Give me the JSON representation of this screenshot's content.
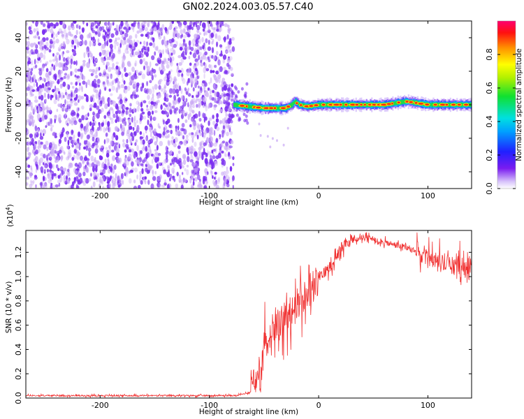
{
  "title": "GN02.2024.003.05.57.C40",
  "colors": {
    "spectrum_dots": "#7b2ff0",
    "spectrum_faint": "#c9a8f5",
    "snr_line": "#f03030",
    "axis": "#000000"
  },
  "chart_data": [
    {
      "type": "heatmap",
      "name": "spectrogram",
      "xlabel": "Height of straight line (km)",
      "ylabel": "Frequency (Hz)",
      "xlim": [
        -268,
        140
      ],
      "ylim": [
        -50,
        50
      ],
      "x_ticks": [
        "-200",
        "-100",
        "0",
        "100"
      ],
      "y_ticks": [
        "-40",
        "-20",
        "0",
        "20",
        "40"
      ],
      "noise_region_x": [
        -268,
        -78
      ],
      "signal_region_x": [
        -78,
        140
      ],
      "signal_center_freq_hz": [
        [
          -78,
          0
        ],
        [
          -65,
          -1
        ],
        [
          -50,
          -2
        ],
        [
          -40,
          -2
        ],
        [
          -30,
          -2
        ],
        [
          -25,
          0
        ],
        [
          -22,
          2
        ],
        [
          -18,
          0
        ],
        [
          -10,
          -1
        ],
        [
          0,
          0
        ],
        [
          20,
          0
        ],
        [
          40,
          0
        ],
        [
          60,
          0
        ],
        [
          70,
          1
        ],
        [
          80,
          2
        ],
        [
          90,
          1
        ],
        [
          100,
          0
        ],
        [
          120,
          0
        ],
        [
          140,
          0
        ]
      ],
      "colorbar": {
        "label": "Normalized spectral amplitude",
        "ticks": [
          "0.0",
          "0.2",
          "0.4",
          "0.6",
          "0.8"
        ],
        "range": [
          0,
          1
        ]
      },
      "grid": false
    },
    {
      "type": "line",
      "name": "snr",
      "xlabel": "Height of straight line (km)",
      "ylabel": "SNR (10 * v/v)",
      "scale_label_base": "(x10",
      "scale_label_exp": "4",
      "scale_label_end": ")",
      "xlim": [
        -268,
        140
      ],
      "ylim": [
        0,
        1.38
      ],
      "x_ticks": [
        "-200",
        "-100",
        "0",
        "100"
      ],
      "y_ticks": [
        "0.0",
        "0.2",
        "0.4",
        "0.6",
        "0.8",
        "1.0",
        "1.2"
      ],
      "series": [
        {
          "points": [
            [
              -268,
              0.02
            ],
            [
              -200,
              0.02
            ],
            [
              -120,
              0.02
            ],
            [
              -75,
              0.02
            ],
            [
              -62,
              0.05
            ],
            [
              -55,
              0.2
            ],
            [
              -50,
              0.45
            ],
            [
              -45,
              0.5
            ],
            [
              -40,
              0.6
            ],
            [
              -35,
              0.62
            ],
            [
              -30,
              0.66
            ],
            [
              -25,
              0.7
            ],
            [
              -20,
              0.76
            ],
            [
              -15,
              0.82
            ],
            [
              -10,
              0.88
            ],
            [
              -5,
              0.93
            ],
            [
              0,
              0.98
            ],
            [
              5,
              1.03
            ],
            [
              10,
              1.08
            ],
            [
              15,
              1.15
            ],
            [
              20,
              1.22
            ],
            [
              25,
              1.27
            ],
            [
              30,
              1.3
            ],
            [
              40,
              1.32
            ],
            [
              50,
              1.31
            ],
            [
              60,
              1.28
            ],
            [
              70,
              1.26
            ],
            [
              80,
              1.24
            ],
            [
              90,
              1.2
            ],
            [
              100,
              1.15
            ],
            [
              110,
              1.12
            ],
            [
              120,
              1.1
            ],
            [
              130,
              1.08
            ],
            [
              140,
              1.05
            ]
          ]
        }
      ],
      "grid": false
    }
  ]
}
